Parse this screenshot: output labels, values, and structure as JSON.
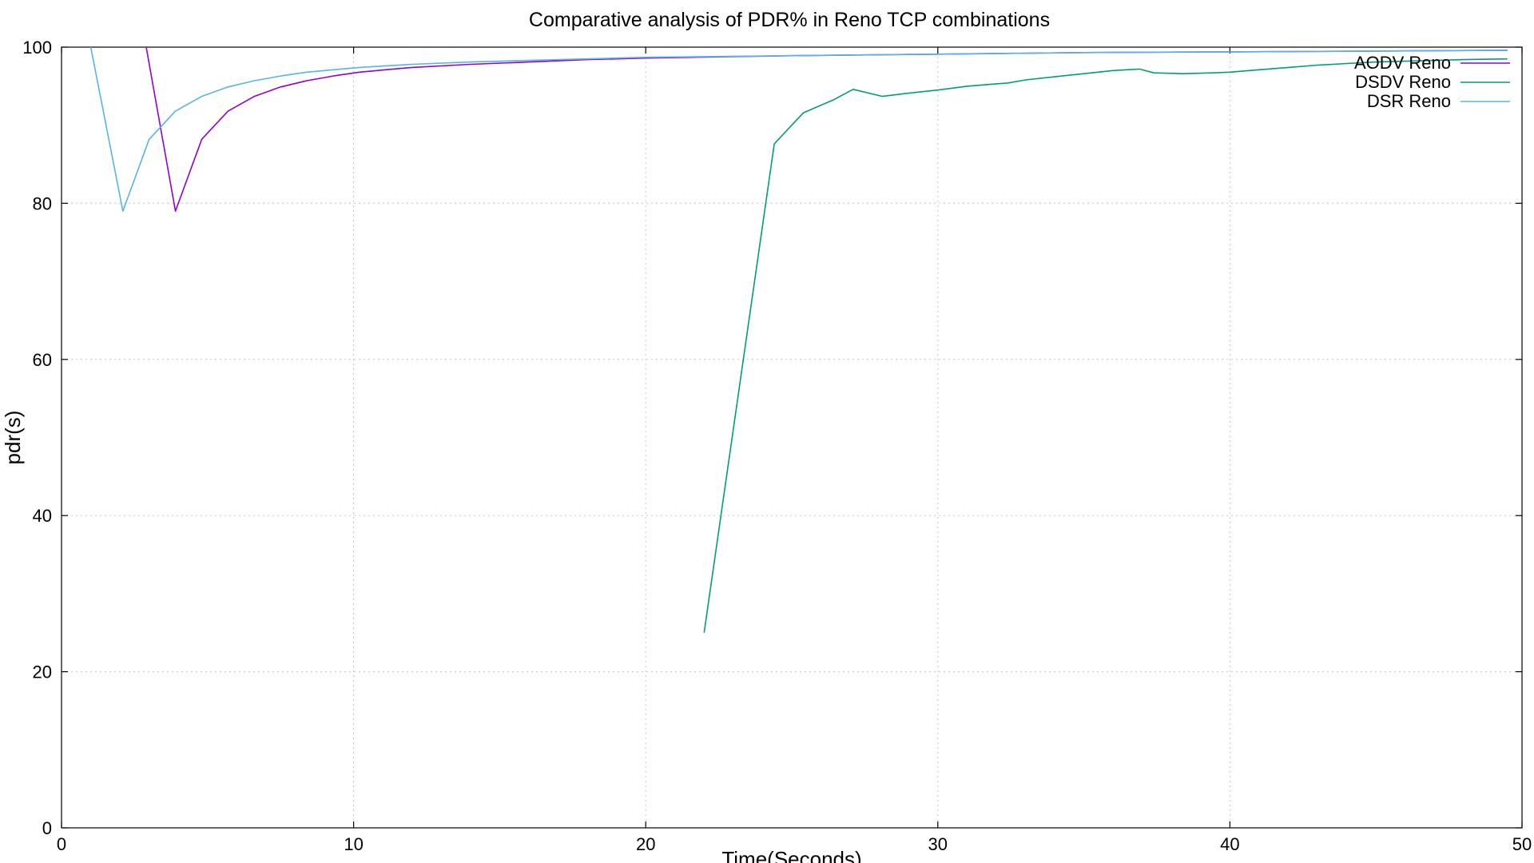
{
  "chart_data": {
    "type": "line",
    "title": "Comparative analysis of PDR% in Reno TCP combinations",
    "xlabel": "Time(Seconds)",
    "ylabel": "pdr(s)",
    "xlim": [
      0,
      50
    ],
    "ylim": [
      0,
      100
    ],
    "xticks": [
      0,
      10,
      20,
      30,
      40,
      50
    ],
    "yticks": [
      0,
      20,
      40,
      60,
      80,
      100
    ],
    "grid": true,
    "legend_position": "top-right",
    "series": [
      {
        "name": "AODV Reno",
        "color": "#9400d3",
        "x": [
          2.9,
          3.9,
          4.8,
          5.7,
          6.6,
          7.5,
          8.4,
          9.3,
          10.2,
          11.1,
          12,
          14,
          16,
          18,
          20,
          25,
          30,
          35,
          40,
          45,
          49.5
        ],
        "y": [
          100,
          79,
          88.2,
          91.8,
          93.7,
          94.9,
          95.7,
          96.3,
          96.8,
          97.1,
          97.4,
          97.8,
          98.1,
          98.4,
          98.6,
          98.9,
          99.1,
          99.3,
          99.4,
          99.5,
          99.6
        ]
      },
      {
        "name": "DSDV Reno",
        "color": "#009e73",
        "x": [
          22,
          24.4,
          25.4,
          26.4,
          27.1,
          28.1,
          29,
          30,
          31,
          32,
          32.4,
          33,
          34,
          35,
          36,
          36.9,
          37.4,
          38.4,
          39.4,
          40,
          41,
          42,
          43,
          44,
          45,
          46,
          47,
          48,
          49.5
        ],
        "y": [
          25,
          87.6,
          91.6,
          93.2,
          94.6,
          93.7,
          94.1,
          94.5,
          95,
          95.3,
          95.4,
          95.8,
          96.2,
          96.6,
          97,
          97.2,
          96.7,
          96.6,
          96.7,
          96.8,
          97.1,
          97.4,
          97.7,
          97.9,
          98.1,
          98.2,
          98.3,
          98.4,
          98.5
        ]
      },
      {
        "name": "DSR Reno",
        "color": "#56b4e9",
        "x": [
          1,
          2.1,
          3,
          3.9,
          4.8,
          5.7,
          6.6,
          7.5,
          8.4,
          9.3,
          10.2,
          11.1,
          12,
          14,
          16,
          18,
          20,
          25,
          30,
          35,
          40,
          45,
          49.5
        ],
        "y": [
          100,
          79,
          88.2,
          91.8,
          93.7,
          94.9,
          95.7,
          96.3,
          96.8,
          97.1,
          97.4,
          97.6,
          97.8,
          98.1,
          98.3,
          98.5,
          98.7,
          98.9,
          99.1,
          99.3,
          99.4,
          99.5,
          99.6
        ]
      }
    ]
  }
}
